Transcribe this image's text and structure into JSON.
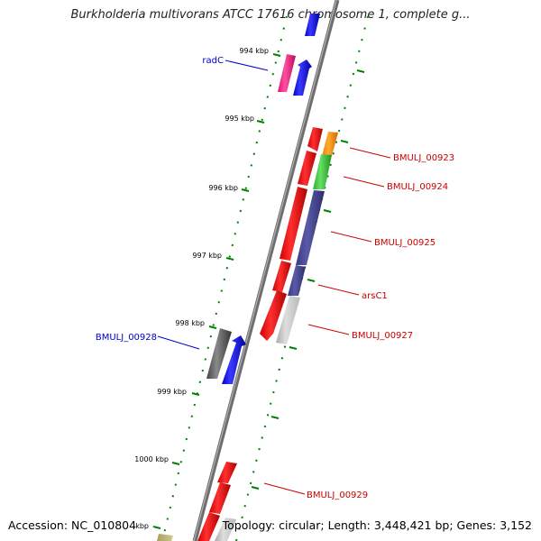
{
  "title": "Burkholderia multivorans ATCC 17616 chromosome 1, complete g...",
  "footer": {
    "accession": "Accession: NC_010804",
    "stats": "Topology: circular; Length: 3,448,421 bp; Genes: 3,152"
  },
  "colors": {
    "backbone": "#7a7a7a",
    "tick": "#008000",
    "forward_label": "#0000cc",
    "reverse_label": "#cc0000"
  },
  "ticks": [
    {
      "label": "994 kbp"
    },
    {
      "label": "995 kbp"
    },
    {
      "label": "996 kbp"
    },
    {
      "label": "997 kbp"
    },
    {
      "label": "998 kbp"
    },
    {
      "label": "999 kbp"
    },
    {
      "label": "1000 kbp"
    },
    {
      "label": "kbp"
    }
  ],
  "gene_labels": [
    {
      "name": "radC",
      "strand": "forward"
    },
    {
      "name": "BMULJ_00928",
      "strand": "forward"
    },
    {
      "name": "BMULJ_00923",
      "strand": "reverse"
    },
    {
      "name": "BMULJ_00924",
      "strand": "reverse"
    },
    {
      "name": "BMULJ_00925",
      "strand": "reverse"
    },
    {
      "name": "arsC1",
      "strand": "reverse"
    },
    {
      "name": "BMULJ_00927",
      "strand": "reverse"
    },
    {
      "name": "BMULJ_00929",
      "strand": "reverse"
    }
  ]
}
